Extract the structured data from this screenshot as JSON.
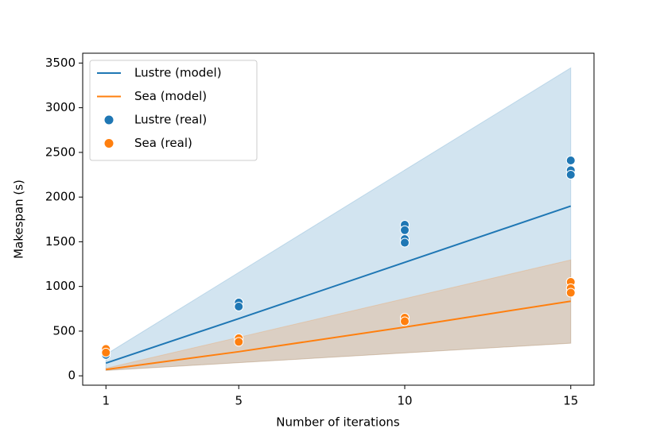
{
  "chart_data": {
    "type": "line",
    "xlabel": "Number of iterations",
    "ylabel": "Makespan (s)",
    "xlim": [
      0.3,
      15.7
    ],
    "xticks": [
      1,
      5,
      10,
      15
    ],
    "ylim": [
      -105,
      3610
    ],
    "yticks": [
      0,
      500,
      1000,
      1500,
      2000,
      2500,
      3000,
      3500
    ],
    "legend": "upper left",
    "series": [
      {
        "name": "Lustre (model)",
        "type": "line",
        "color": "#1f77b4",
        "x": [
          1,
          5,
          10,
          15
        ],
        "values": [
          142,
          640,
          1270,
          1900
        ],
        "lower": [
          60,
          147,
          256,
          365
        ],
        "upper": [
          240,
          1157,
          2303,
          3446
        ]
      },
      {
        "name": "Sea (model)",
        "type": "line",
        "color": "#ff7f0e",
        "x": [
          1,
          5,
          10,
          15
        ],
        "values": [
          71,
          270,
          545,
          835
        ],
        "lower": [
          60,
          147,
          256,
          365
        ],
        "upper": [
          85,
          431,
          864,
          1297
        ]
      },
      {
        "name": "Lustre (real)",
        "type": "scatter",
        "color": "#1f77b4",
        "x": [
          1,
          1,
          5,
          5,
          10,
          10,
          10,
          10,
          15,
          15,
          15
        ],
        "values": [
          235,
          260,
          820,
          775,
          1690,
          1630,
          1530,
          1490,
          2410,
          2300,
          2250
        ]
      },
      {
        "name": "Sea (real)",
        "type": "scatter",
        "color": "#ff7f0e",
        "x": [
          1,
          1,
          5,
          5,
          10,
          10,
          15,
          15,
          15
        ],
        "values": [
          300,
          260,
          420,
          380,
          650,
          610,
          1050,
          980,
          930
        ]
      }
    ]
  }
}
